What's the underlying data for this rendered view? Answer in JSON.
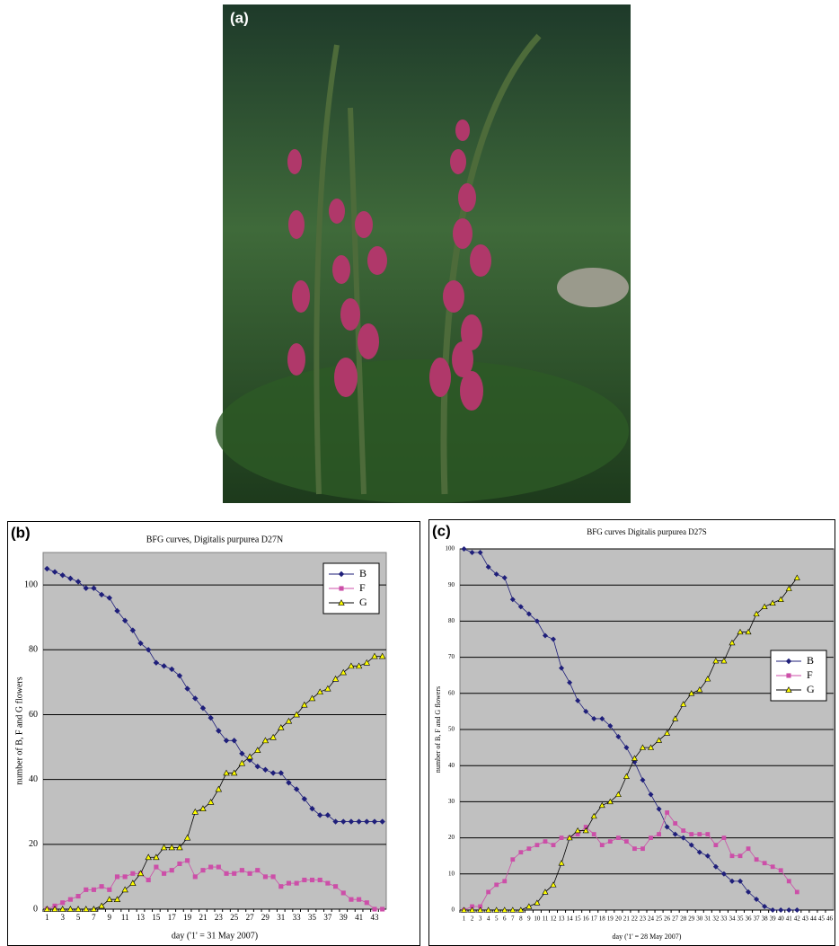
{
  "photo_label": "(a)",
  "chart_data": [
    {
      "type": "line",
      "panel_label": "(b)",
      "title": "BFG curves, Digitalis purpurea D27N",
      "ylabel": "number of B, F and G flowers",
      "xlabel": "day ('1' = 31 May 2007)",
      "categories": [
        1,
        null,
        3,
        null,
        5,
        null,
        7,
        null,
        9,
        null,
        11,
        null,
        13,
        null,
        15,
        null,
        17,
        null,
        19,
        null,
        21,
        null,
        23,
        null,
        25,
        null,
        27,
        null,
        29,
        null,
        31,
        null,
        33,
        null,
        35,
        null,
        37,
        null,
        39,
        null,
        41,
        null,
        43,
        null
      ],
      "ylim": [
        0,
        110
      ],
      "yticks": [
        0,
        20,
        40,
        60,
        80,
        100
      ],
      "grid": true,
      "legend": "upper right",
      "series": [
        {
          "name": "B",
          "color": "#1f1f7a",
          "marker": "diamond",
          "values": [
            105,
            104,
            103,
            102,
            101,
            99,
            99,
            97,
            96,
            92,
            89,
            86,
            82,
            80,
            76,
            75,
            74,
            72,
            68,
            65,
            62,
            59,
            55,
            52,
            52,
            48,
            46,
            44,
            43,
            42,
            42,
            39,
            37,
            34,
            31,
            29,
            29,
            27,
            27,
            27,
            27,
            27,
            27,
            27
          ]
        },
        {
          "name": "F",
          "color": "#cc4fa8",
          "marker": "square",
          "values": [
            0,
            1,
            2,
            3,
            4,
            6,
            6,
            7,
            6,
            10,
            10,
            11,
            11,
            9,
            13,
            11,
            12,
            14,
            15,
            10,
            12,
            13,
            13,
            11,
            11,
            12,
            11,
            12,
            10,
            10,
            7,
            8,
            8,
            9,
            9,
            9,
            8,
            7,
            5,
            3,
            3,
            2,
            0,
            0
          ]
        },
        {
          "name": "G",
          "color": "#ffff00",
          "marker": "triangle",
          "values": [
            0,
            0,
            0,
            0,
            0,
            0,
            0,
            1,
            3,
            3,
            6,
            8,
            11,
            16,
            16,
            19,
            19,
            19,
            22,
            30,
            31,
            33,
            37,
            42,
            42,
            45,
            47,
            49,
            52,
            53,
            56,
            58,
            60,
            63,
            65,
            67,
            68,
            71,
            73,
            75,
            75,
            76,
            78,
            78
          ]
        }
      ]
    },
    {
      "type": "line",
      "panel_label": "(c)",
      "title": "BFG curves Digitalis purpurea  D27S",
      "ylabel": "number of B, F and G flowers",
      "xlabel": "day ('1' = 28 May 2007)",
      "categories": [
        1,
        2,
        3,
        4,
        5,
        6,
        7,
        8,
        9,
        10,
        11,
        12,
        13,
        14,
        15,
        16,
        17,
        18,
        19,
        20,
        21,
        22,
        23,
        24,
        25,
        26,
        27,
        28,
        29,
        30,
        31,
        32,
        33,
        34,
        35,
        36,
        37,
        38,
        39,
        40,
        41,
        42,
        43,
        44,
        45,
        46
      ],
      "ylim": [
        0,
        100
      ],
      "yticks": [
        0,
        10,
        20,
        30,
        40,
        50,
        60,
        70,
        80,
        90,
        100
      ],
      "grid": true,
      "legend": "center right",
      "series": [
        {
          "name": "B",
          "color": "#1f1f7a",
          "marker": "diamond",
          "values": [
            100,
            99,
            99,
            95,
            93,
            92,
            86,
            84,
            82,
            80,
            76,
            75,
            67,
            63,
            58,
            55,
            53,
            53,
            51,
            48,
            45,
            41,
            36,
            32,
            28,
            23,
            21,
            20,
            18,
            16,
            15,
            12,
            10,
            8,
            8,
            5,
            3,
            1,
            0,
            0,
            0,
            0,
            null,
            null,
            null,
            null
          ]
        },
        {
          "name": "F",
          "color": "#cc4fa8",
          "marker": "square",
          "values": [
            0,
            1,
            1,
            5,
            7,
            8,
            14,
            16,
            17,
            18,
            19,
            18,
            20,
            20,
            21,
            23,
            21,
            18,
            19,
            20,
            19,
            17,
            17,
            20,
            21,
            27,
            24,
            22,
            21,
            21,
            21,
            18,
            20,
            15,
            15,
            17,
            14,
            13,
            12,
            11,
            8,
            5,
            null,
            null,
            null,
            null
          ]
        },
        {
          "name": "G",
          "color": "#ffff00",
          "marker": "triangle",
          "values": [
            0,
            0,
            0,
            0,
            0,
            0,
            0,
            0,
            1,
            2,
            5,
            7,
            13,
            20,
            22,
            22,
            26,
            29,
            30,
            32,
            37,
            42,
            45,
            45,
            47,
            49,
            53,
            57,
            60,
            61,
            64,
            69,
            69,
            74,
            77,
            77,
            82,
            84,
            85,
            86,
            89,
            92,
            null,
            null,
            null,
            null
          ]
        }
      ]
    }
  ]
}
